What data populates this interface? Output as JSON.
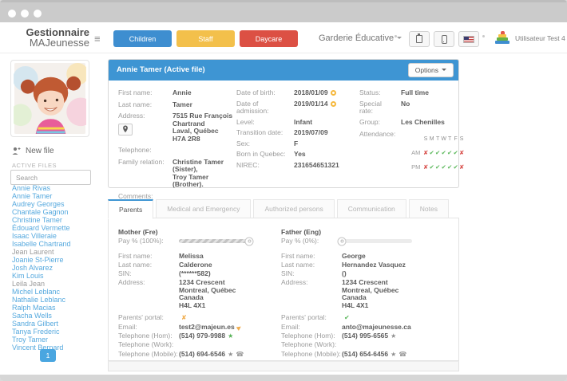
{
  "header": {
    "logo_line1": "Gestionnaire",
    "logo_line2": "MAJeunesse",
    "nav_buttons": [
      {
        "id": "children",
        "label": "Children",
        "color": "#3e8ed0"
      },
      {
        "id": "staff",
        "label": "Staff",
        "color": "#f3c04b"
      },
      {
        "id": "daycare",
        "label": "Daycare",
        "color": "#dc5044"
      }
    ],
    "daycare_name": "Garderie Éducative",
    "toolbar_icons": [
      "clipboard-icon",
      "mobile-icon",
      "us-flag-icon"
    ],
    "user_name": "Utilisateur Test 4",
    "accent_blue": "#3e95d3"
  },
  "sidebar": {
    "new_file_label": "New file",
    "section_label": "ACTIVE FILES",
    "search_placeholder": "Search",
    "names": [
      {
        "name": "Annie Rivas",
        "link": true
      },
      {
        "name": "Annie Tamer",
        "link": true
      },
      {
        "name": "Audrey Georges",
        "link": true
      },
      {
        "name": "Chantale Gagnon",
        "link": true
      },
      {
        "name": "Christine Tamer",
        "link": true
      },
      {
        "name": "Édouard Vermette",
        "link": true
      },
      {
        "name": "Isaac Villeraie",
        "link": true
      },
      {
        "name": "Isabelle Chartrand",
        "link": true
      },
      {
        "name": "Jean Laurent",
        "link": false
      },
      {
        "name": "Joanie St-Pierre",
        "link": true
      },
      {
        "name": "Josh Alvarez",
        "link": true
      },
      {
        "name": "Kim Louis",
        "link": true
      },
      {
        "name": "Leila Jean",
        "link": false
      },
      {
        "name": "Michel Leblanc",
        "link": true
      },
      {
        "name": "Nathalie Leblanc",
        "link": true
      },
      {
        "name": "Ralph Macias",
        "link": true
      },
      {
        "name": "Sacha Wells",
        "link": true
      },
      {
        "name": "Sandra Gilbert",
        "link": true
      },
      {
        "name": "Tanya Frederic",
        "link": true
      },
      {
        "name": "Troy Tamer",
        "link": true
      },
      {
        "name": "Vincent Bernard",
        "link": true
      }
    ],
    "pagination": "1"
  },
  "file_panel": {
    "title": "Annie Tamer (Active file)",
    "options_label": "Options",
    "col1": [
      {
        "label": "First name:",
        "value": "Annie"
      },
      {
        "label": "Last name:",
        "value": "Tamer"
      },
      {
        "label": "Address:",
        "lines": [
          "7515 Rue François",
          "Chartrand",
          "Laval, Québec",
          "H7A 2R8"
        ],
        "map_button": true
      },
      {
        "label": "Telephone:",
        "value": ""
      },
      {
        "label": "Family relation:",
        "lines": [
          "Christine Tamer (Sister),",
          "Troy Tamer (Brother)."
        ]
      },
      {
        "label": "Comments:",
        "value": ""
      }
    ],
    "col2": [
      {
        "label": "Date of birth:",
        "value": "2018/01/09",
        "icons": [
          "history-icon"
        ]
      },
      {
        "label": "Date of admission:",
        "value": "2019/01/14",
        "icons": [
          "history-icon"
        ]
      },
      {
        "label": "Level:",
        "value": "Infant"
      },
      {
        "label": "Transition date:",
        "value": "2019/07/09"
      },
      {
        "label": "Sex:",
        "value": "F"
      },
      {
        "label": "Born in Quebec:",
        "value": "Yes"
      },
      {
        "label": "NIREC:",
        "value": "231654651321"
      }
    ],
    "col3": [
      {
        "label": "Status:",
        "value": "Full time"
      },
      {
        "label": "Special rate:",
        "value": "No"
      },
      {
        "label": "Group:",
        "value": "Les Chenilles"
      }
    ],
    "attendance": {
      "label": "Attendance:",
      "days": [
        "S",
        "M",
        "T",
        "W",
        "T",
        "F",
        "S"
      ],
      "am": [
        "x",
        "c",
        "c",
        "c",
        "c",
        "c",
        "x"
      ],
      "pm": [
        "x",
        "c",
        "c",
        "c",
        "c",
        "c",
        "x"
      ]
    }
  },
  "tabs": [
    {
      "id": "parents",
      "label": "Parents",
      "active": true
    },
    {
      "id": "medical",
      "label": "Medical and Emergency",
      "active": false
    },
    {
      "id": "authorized",
      "label": "Authorized persons",
      "active": false
    },
    {
      "id": "communication",
      "label": "Communication",
      "active": false
    },
    {
      "id": "notes",
      "label": "Notes",
      "active": false
    }
  ],
  "parents_tab": {
    "mother": {
      "title": "Mother (Fre)",
      "pay_label": "Pay % (100%):",
      "pay_percent": 100,
      "rows": [
        {
          "label": "First name:",
          "value": "Melissa"
        },
        {
          "label": "Last name:",
          "value": "Calderone"
        },
        {
          "label": "SIN:",
          "value": "(******582)"
        },
        {
          "label": "Address:",
          "lines": [
            "1234 Crescent",
            "Montreal, Québec",
            "Canada",
            "H4L 4X1"
          ]
        },
        {
          "label": "Parents' portal:",
          "icons": [
            "x-mark-icon"
          ],
          "gap_before": true
        },
        {
          "label": "Email:",
          "value": "test2@majeun.es",
          "icons": [
            "send-icon"
          ]
        },
        {
          "label": "Telephone (Hom):",
          "value": "(514) 979-9988",
          "icons": [
            "star-green-icon"
          ]
        },
        {
          "label": "Telephone (Work):",
          "value": ""
        },
        {
          "label": "Telephone (Mobile):",
          "value": "(514) 694-6546",
          "icons": [
            "star-icon",
            "sms-icon"
          ]
        }
      ]
    },
    "father": {
      "title": "Father (Eng)",
      "pay_label": "Pay % (0%):",
      "pay_percent": 0,
      "rows": [
        {
          "label": "First name:",
          "value": "George"
        },
        {
          "label": "Last name:",
          "value": "Hernandez Vasquez"
        },
        {
          "label": "SIN:",
          "value": "()"
        },
        {
          "label": "Address:",
          "lines": [
            "1234 Crescent",
            "Montreal, Québec",
            "Canada",
            "H4L 4X1"
          ]
        },
        {
          "label": "Parents' portal:",
          "icons": [
            "check-mark-icon"
          ],
          "gap_before": true
        },
        {
          "label": "Email:",
          "value": "anto@majeunesse.ca"
        },
        {
          "label": "Telephone (Hom):",
          "value": "(514) 995-6565",
          "icons": [
            "star-icon"
          ]
        },
        {
          "label": "Telephone (Work):",
          "value": ""
        },
        {
          "label": "Telephone (Mobile):",
          "value": "(514) 654-6456",
          "icons": [
            "star-icon",
            "sms-icon"
          ]
        }
      ]
    }
  }
}
